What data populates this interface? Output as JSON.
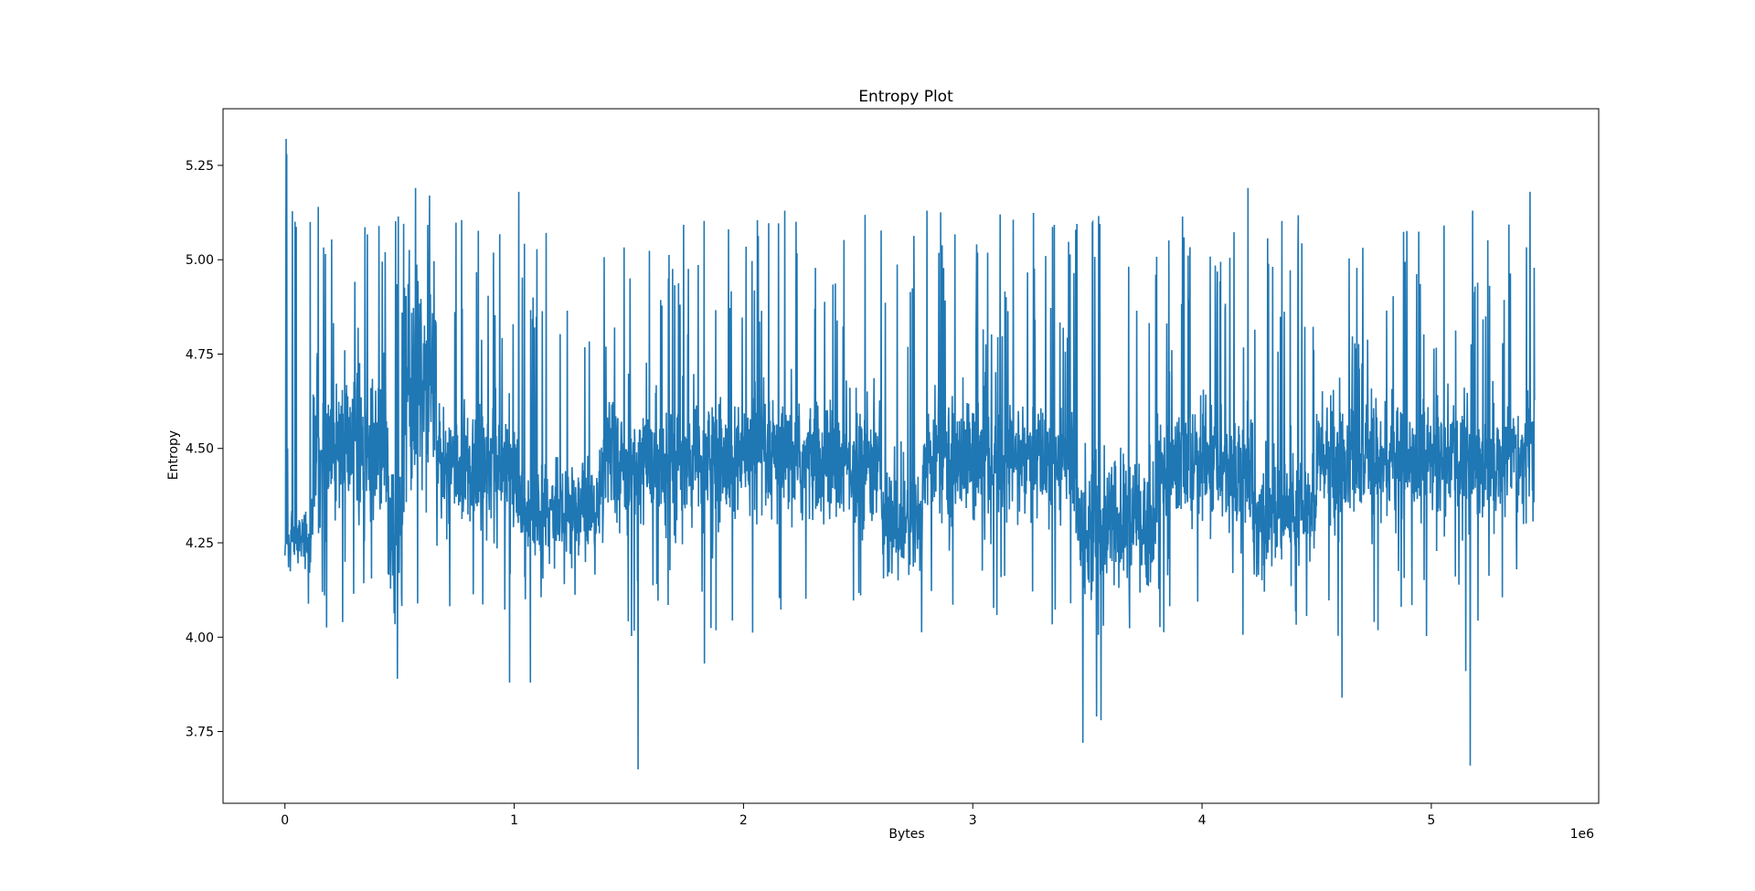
{
  "chart_data": {
    "type": "line",
    "title": "Entropy Plot",
    "xlabel": "Bytes",
    "ylabel": "Entropy",
    "x_offset_label": "1e6",
    "x_scale": 1000000,
    "xlim": [
      -270000,
      5730000
    ],
    "ylim": [
      3.56,
      5.4
    ],
    "x_ticks": [
      0,
      1000000,
      2000000,
      3000000,
      4000000,
      5000000
    ],
    "x_tick_labels": [
      "0",
      "1",
      "2",
      "3",
      "4",
      "5"
    ],
    "y_ticks": [
      3.75,
      4.0,
      4.25,
      4.5,
      4.75,
      5.0,
      5.25
    ],
    "y_tick_labels": [
      "3.75",
      "4.00",
      "4.25",
      "4.50",
      "4.75",
      "5.00",
      "5.25"
    ],
    "grid": false,
    "x_max": 5450000,
    "series": [
      {
        "color": "#1f77b4",
        "regimes": [
          {
            "x_start": 0,
            "x_end": 120000,
            "base": 4.26,
            "noise": 0.04
          },
          {
            "x_start": 120000,
            "x_end": 450000,
            "base": 4.5,
            "noise": 0.1
          },
          {
            "x_start": 450000,
            "x_end": 520000,
            "base": 4.3,
            "noise": 0.12
          },
          {
            "x_start": 520000,
            "x_end": 660000,
            "base": 4.65,
            "noise": 0.15
          },
          {
            "x_start": 660000,
            "x_end": 1020000,
            "base": 4.45,
            "noise": 0.08
          },
          {
            "x_start": 1020000,
            "x_end": 1380000,
            "base": 4.34,
            "noise": 0.07
          },
          {
            "x_start": 1380000,
            "x_end": 2600000,
            "base": 4.46,
            "noise": 0.08
          },
          {
            "x_start": 2600000,
            "x_end": 2780000,
            "base": 4.3,
            "noise": 0.08
          },
          {
            "x_start": 2780000,
            "x_end": 3450000,
            "base": 4.47,
            "noise": 0.08
          },
          {
            "x_start": 3450000,
            "x_end": 3800000,
            "base": 4.3,
            "noise": 0.09
          },
          {
            "x_start": 3800000,
            "x_end": 4220000,
            "base": 4.45,
            "noise": 0.08
          },
          {
            "x_start": 4220000,
            "x_end": 4500000,
            "base": 4.33,
            "noise": 0.07
          },
          {
            "x_start": 4500000,
            "x_end": 5450000,
            "base": 4.47,
            "noise": 0.08
          }
        ],
        "peaks": [
          {
            "x": 5000,
            "y": 5.32
          },
          {
            "x": 12000,
            "y": 4.5
          },
          {
            "x": 8000,
            "y": 5.28
          },
          {
            "x": 110000,
            "y": 5.1
          },
          {
            "x": 145000,
            "y": 5.14
          },
          {
            "x": 570000,
            "y": 5.19
          },
          {
            "x": 630000,
            "y": 5.17
          },
          {
            "x": 1020000,
            "y": 5.18
          },
          {
            "x": 1540000,
            "y": 5.18
          },
          {
            "x": 2180000,
            "y": 5.13
          },
          {
            "x": 2800000,
            "y": 5.13
          },
          {
            "x": 3480000,
            "y": 5.12
          },
          {
            "x": 4200000,
            "y": 5.19
          },
          {
            "x": 5180000,
            "y": 5.13
          },
          {
            "x": 5430000,
            "y": 5.18
          }
        ],
        "troughs": [
          {
            "x": 490000,
            "y": 3.89
          },
          {
            "x": 980000,
            "y": 3.88
          },
          {
            "x": 1070000,
            "y": 3.88
          },
          {
            "x": 1540000,
            "y": 3.65
          },
          {
            "x": 1830000,
            "y": 3.93
          },
          {
            "x": 3480000,
            "y": 3.72
          },
          {
            "x": 3540000,
            "y": 3.79
          },
          {
            "x": 3560000,
            "y": 3.78
          },
          {
            "x": 4610000,
            "y": 3.84
          },
          {
            "x": 5150000,
            "y": 3.91
          },
          {
            "x": 5170000,
            "y": 3.66
          }
        ]
      }
    ]
  }
}
